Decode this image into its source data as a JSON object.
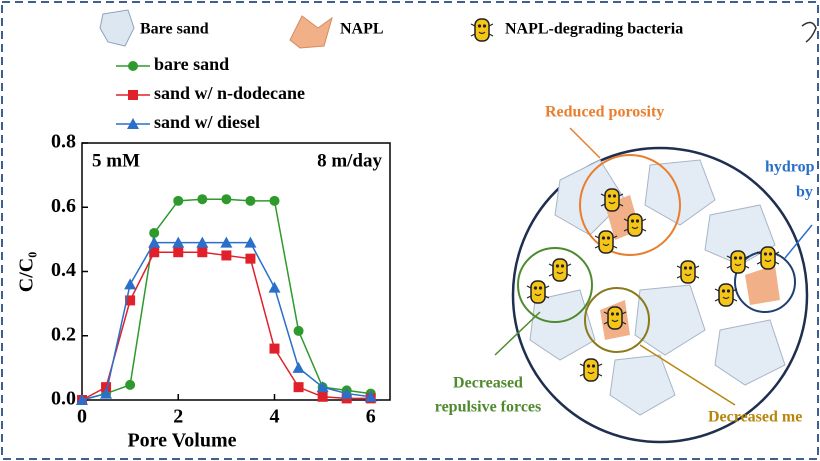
{
  "chart_data": {
    "type": "line",
    "xlabel": "Pore Volume",
    "ylabel": "C/C₀",
    "annotations": [
      "5 mM",
      "8 m/day"
    ],
    "x": [
      0,
      0.5,
      1,
      1.5,
      2,
      2.5,
      3,
      3.5,
      4,
      4.5,
      5,
      5.5,
      6
    ],
    "series": [
      {
        "name": "bare sand",
        "color": "#2e9a2e",
        "marker": "circle",
        "values": [
          0,
          0.02,
          0.047,
          0.52,
          0.62,
          0.625,
          0.625,
          0.62,
          0.62,
          0.215,
          0.04,
          0.03,
          0.02
        ]
      },
      {
        "name": "sand w/ n-dodecane",
        "color": "#e0202a",
        "marker": "square",
        "values": [
          0,
          0.04,
          0.31,
          0.46,
          0.46,
          0.46,
          0.45,
          0.44,
          0.16,
          0.04,
          0.01,
          0.005,
          0.005
        ]
      },
      {
        "name": "sand w/ diesel",
        "color": "#2a6fc9",
        "marker": "triangle",
        "values": [
          0,
          0.02,
          0.36,
          0.49,
          0.49,
          0.49,
          0.49,
          0.49,
          0.35,
          0.1,
          0.04,
          0.02,
          0.01
        ]
      }
    ],
    "xlim": [
      0,
      6.4
    ],
    "ylim": [
      0,
      0.8
    ],
    "xticks": [
      0,
      2,
      4,
      6
    ],
    "yticks": [
      {
        "value": 0,
        "label": "0.0"
      },
      0.2,
      0.4,
      0.6,
      0.8
    ]
  },
  "diagram": {
    "legend": [
      "Bare sand",
      "NAPL",
      "NAPL-degrading bacteria"
    ],
    "reduced_porosity": "Reduced porosity",
    "hydrophobic": [
      "hydrop",
      "by"
    ],
    "repulsive": [
      "Decreased",
      "repulsive forces"
    ],
    "decreased_me": "Decreased me"
  }
}
